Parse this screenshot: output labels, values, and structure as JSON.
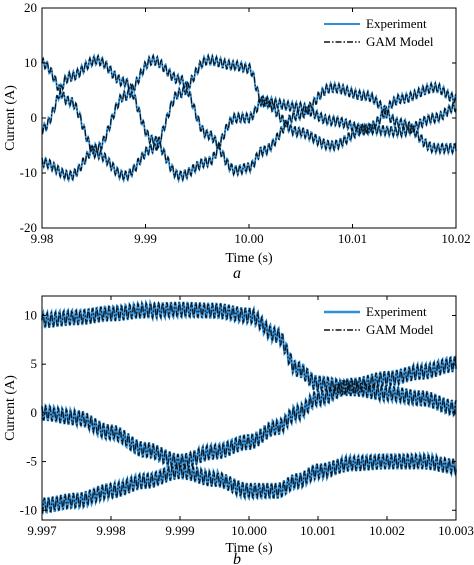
{
  "colors": {
    "experiment": "#2f8fd8",
    "gam_model": "#111111",
    "axis": "#000000"
  },
  "chart_data": [
    {
      "type": "line",
      "caption": "a",
      "xlabel": "Time (s)",
      "ylabel": "Current (A)",
      "xlim": [
        9.98,
        10.02
      ],
      "ylim": [
        -20,
        20
      ],
      "x_ticks": [
        9.98,
        9.99,
        10.0,
        10.01,
        10.02
      ],
      "x_tick_labels": [
        "9.98",
        "9.99",
        "10.00",
        "10.01",
        "10.02"
      ],
      "y_ticks": [
        -20,
        -10,
        0,
        10,
        20
      ],
      "y_tick_labels": [
        "-20",
        "-10",
        "0",
        "10",
        "20"
      ],
      "grid": false,
      "legend_position": "top-right",
      "legend": [
        "Experiment",
        "GAM Model"
      ],
      "series": [
        {
          "name": "Experiment",
          "x": [
            9.98,
            9.9827,
            9.9853,
            9.988,
            9.9907,
            9.9933,
            9.996,
            9.9987,
            10.0,
            10.0013,
            10.0047,
            10.008,
            10.0113,
            10.0147,
            10.018,
            10.02
          ],
          "y_phase_a": [
            10.0,
            3.0,
            -6.5,
            -10.5,
            -5.5,
            4.5,
            10.5,
            9.5,
            9.0,
            3.0,
            -2.5,
            -5.0,
            -2.0,
            3.5,
            5.5,
            3.5
          ],
          "y_phase_b": [
            -8.0,
            -10.5,
            -5.5,
            4.0,
            10.5,
            7.0,
            -3.0,
            -9.5,
            -9.0,
            -6.0,
            0.5,
            5.5,
            4.0,
            -1.0,
            -5.5,
            -5.5
          ],
          "y_phase_c": [
            -2.0,
            7.5,
            10.5,
            6.5,
            -4.0,
            -10.5,
            -8.0,
            0.0,
            0.0,
            3.0,
            2.0,
            -0.5,
            -2.0,
            -2.5,
            0.0,
            2.0
          ]
        },
        {
          "name": "GAM Model",
          "x": [
            9.98,
            9.9827,
            9.9853,
            9.988,
            9.9907,
            9.9933,
            9.996,
            9.9987,
            10.0,
            10.0013,
            10.0047,
            10.008,
            10.0113,
            10.0147,
            10.018,
            10.02
          ],
          "y_phase_a": [
            10.0,
            3.0,
            -6.5,
            -10.5,
            -5.5,
            4.5,
            10.5,
            9.5,
            9.0,
            3.0,
            -2.5,
            -5.0,
            -2.0,
            3.5,
            5.5,
            3.5
          ],
          "y_phase_b": [
            -8.0,
            -10.5,
            -5.5,
            4.0,
            10.5,
            7.0,
            -3.0,
            -9.5,
            -9.0,
            -6.0,
            0.5,
            5.5,
            4.0,
            -1.0,
            -5.5,
            -5.5
          ],
          "y_phase_c": [
            -2.0,
            7.5,
            10.5,
            6.5,
            -4.0,
            -10.5,
            -8.0,
            0.0,
            0.0,
            3.0,
            2.0,
            -0.5,
            -2.0,
            -2.5,
            0.0,
            2.0
          ]
        }
      ]
    },
    {
      "type": "line",
      "caption": "b",
      "xlabel": "Time (s)",
      "ylabel": "Current (A)",
      "xlim": [
        9.997,
        10.003
      ],
      "ylim": [
        -11,
        12
      ],
      "x_ticks": [
        9.997,
        9.998,
        9.999,
        10.0,
        10.001,
        10.002,
        10.003
      ],
      "x_tick_labels": [
        "9.997",
        "9.998",
        "9.999",
        "10.000",
        "10.001",
        "10.002",
        "10.003"
      ],
      "y_ticks": [
        -10,
        -5,
        0,
        5,
        10
      ],
      "y_tick_labels": [
        "-10",
        "-5",
        "0",
        "5",
        "10"
      ],
      "grid": false,
      "legend_position": "top-right",
      "legend": [
        "Experiment",
        "GAM Model"
      ],
      "series": [
        {
          "name": "Experiment",
          "x": [
            9.997,
            9.9975,
            9.998,
            9.9985,
            9.999,
            9.9995,
            10.0,
            10.0004,
            10.0007,
            10.001,
            10.0015,
            10.002,
            10.0025,
            10.003
          ],
          "y_phase_a": [
            9.5,
            9.8,
            10.2,
            10.5,
            10.6,
            10.5,
            10.0,
            8.0,
            4.5,
            3.0,
            2.5,
            2.0,
            1.5,
            0.5
          ],
          "y_phase_b": [
            0.0,
            -0.5,
            -2.0,
            -3.8,
            -5.0,
            -4.0,
            -3.0,
            -1.5,
            0.0,
            1.5,
            2.8,
            3.5,
            4.2,
            5.0
          ],
          "y_phase_c": [
            -9.5,
            -9.0,
            -8.0,
            -7.0,
            -6.0,
            -6.8,
            -8.0,
            -8.0,
            -7.0,
            -6.0,
            -5.2,
            -5.0,
            -5.0,
            -5.5
          ]
        },
        {
          "name": "GAM Model",
          "x": [
            9.997,
            9.9975,
            9.998,
            9.9985,
            9.999,
            9.9995,
            10.0,
            10.0004,
            10.0007,
            10.001,
            10.0015,
            10.002,
            10.0025,
            10.003
          ],
          "y_phase_a": [
            9.5,
            9.8,
            10.2,
            10.5,
            10.6,
            10.5,
            10.0,
            8.0,
            4.5,
            3.0,
            2.5,
            2.0,
            1.5,
            0.5
          ],
          "y_phase_b": [
            0.0,
            -0.5,
            -2.0,
            -3.8,
            -5.0,
            -4.0,
            -3.0,
            -1.5,
            0.0,
            1.5,
            2.8,
            3.5,
            4.2,
            5.0
          ],
          "y_phase_c": [
            -9.5,
            -9.0,
            -8.0,
            -7.0,
            -6.0,
            -6.8,
            -8.0,
            -8.0,
            -7.0,
            -6.0,
            -5.2,
            -5.0,
            -5.0,
            -5.5
          ]
        }
      ]
    }
  ]
}
